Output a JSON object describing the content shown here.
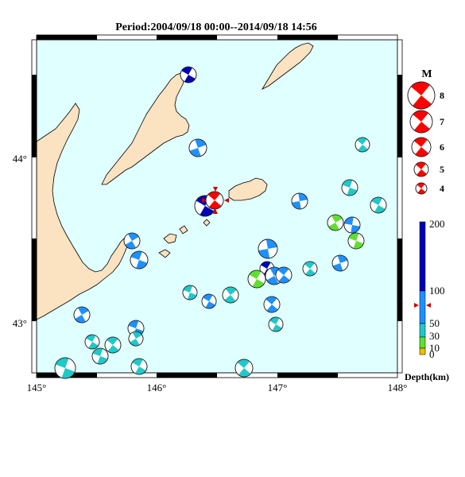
{
  "title": "Period:2004/09/18 00:00--2014/09/18 14:56",
  "lon_ticks": [
    "145°",
    "146°",
    "147°",
    "148°"
  ],
  "lat_ticks": [
    "44°",
    "43°"
  ],
  "magnitude_legend": {
    "heading": "M",
    "items": [
      "8",
      "7",
      "6",
      "5",
      "4"
    ]
  },
  "depth_scale": {
    "ticks": [
      "200",
      "100",
      "50",
      "30",
      "10",
      "0"
    ],
    "label": "Depth(km)",
    "colors": [
      "#e8c000",
      "#5fe030",
      "#20c8c8",
      "#1e90ff",
      "#0000b4"
    ]
  },
  "colors": {
    "sea": "#e0ffff",
    "land": "#fbe2c0",
    "coast": "#000000",
    "mainshock": "#ff0000"
  },
  "main_event_marker": "red-triangle"
}
